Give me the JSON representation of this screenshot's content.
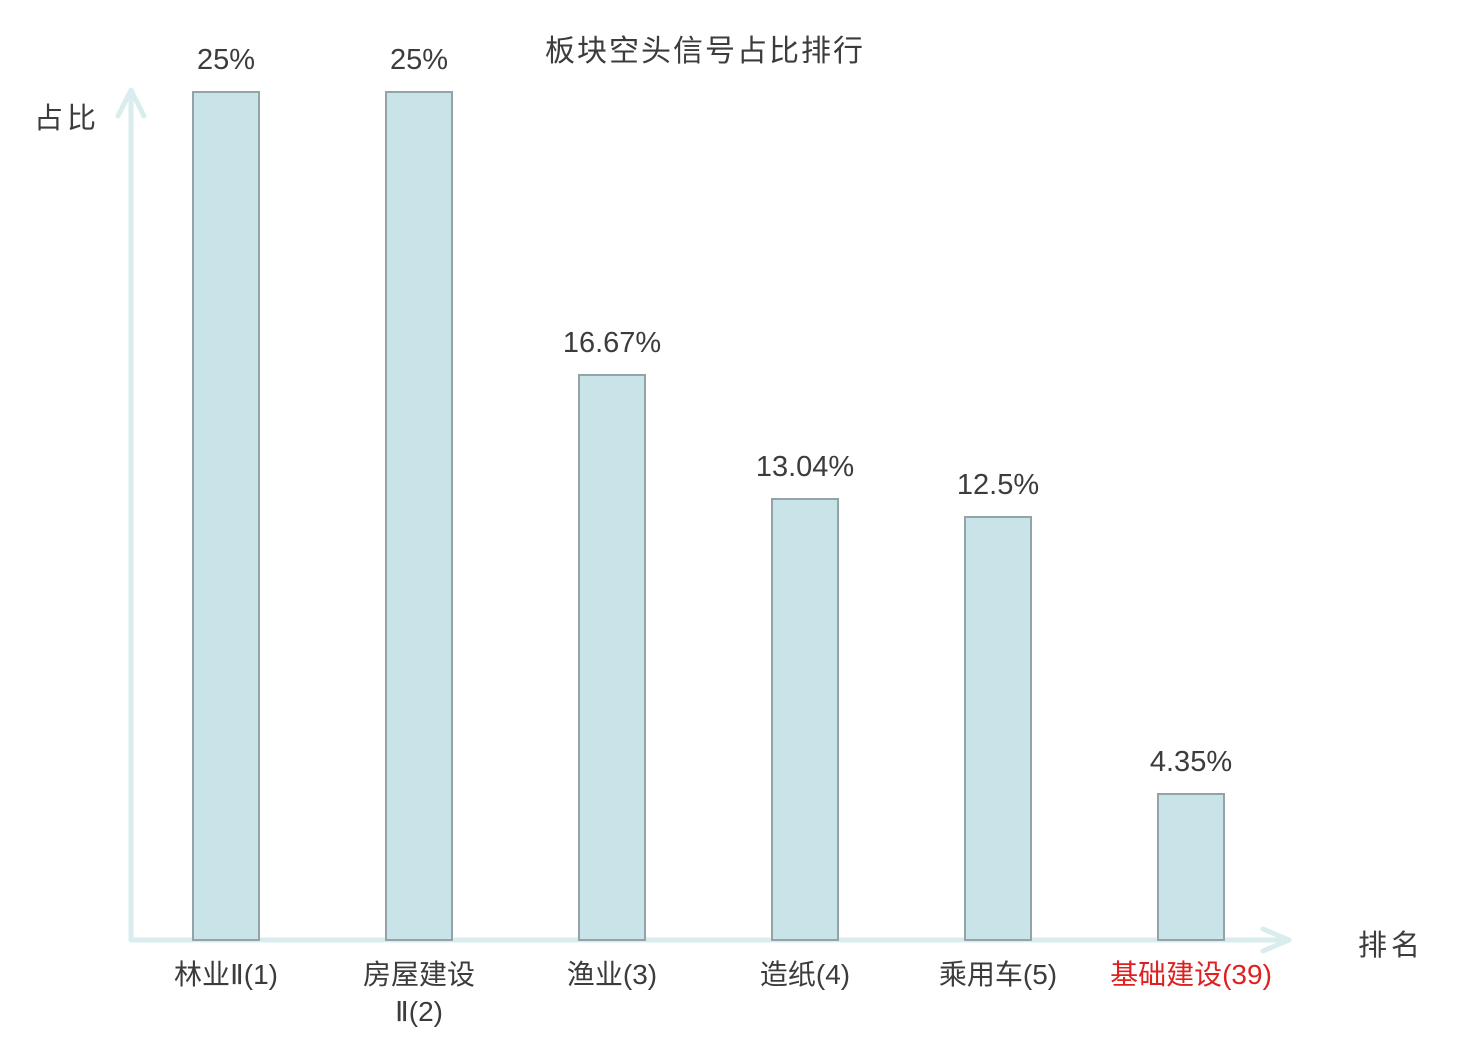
{
  "chart_data": {
    "type": "bar",
    "title": "板块空头信号占比排行",
    "ylabel": "占比",
    "xlabel": "排名",
    "categories": [
      "林业Ⅱ(1)",
      "房屋建设\nⅡ(2)",
      "渔业(3)",
      "造纸(4)",
      "乘用车(5)",
      "基础建设(39)"
    ],
    "values": [
      25,
      25,
      16.67,
      13.04,
      12.5,
      4.35
    ],
    "value_labels": [
      "25%",
      "25%",
      "16.67%",
      "13.04%",
      "12.5%",
      "4.35%"
    ],
    "category_colors": [
      "#3c3c3c",
      "#3c3c3c",
      "#3c3c3c",
      "#3c3c3c",
      "#3c3c3c",
      "#e02020"
    ],
    "ylim": [
      0,
      25
    ],
    "grid": false,
    "legend": false,
    "bar_fill": "#c8e4e8",
    "bar_border": "#93a4a8",
    "axis_color": "#d9edee",
    "text_color": "#3c3c3c",
    "highlight_color": "#e02020"
  }
}
